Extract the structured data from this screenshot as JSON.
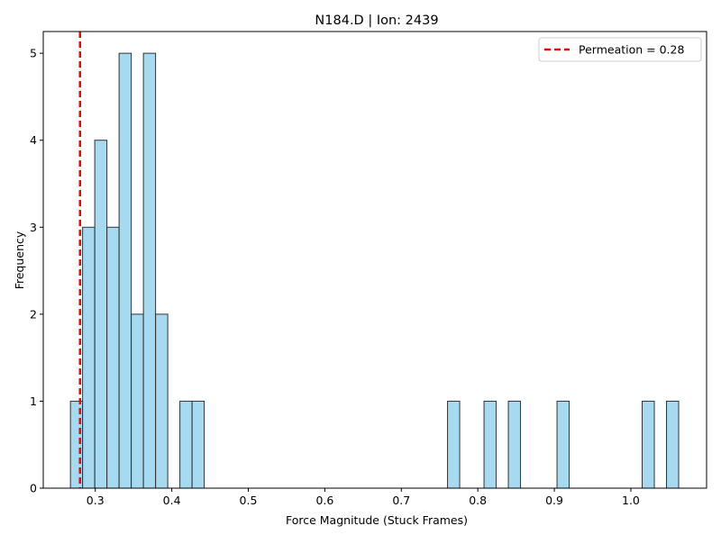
{
  "chart_data": {
    "type": "histogram",
    "title": "N184.D | Ion: 2439",
    "xlabel": "Force Magnitude (Stuck Frames)",
    "ylabel": "Frequency",
    "xlim": [
      0.232,
      1.099
    ],
    "ylim": [
      0,
      5.25
    ],
    "bin_width": 0.0159,
    "bins": [
      {
        "x0": 0.2675,
        "count": 1
      },
      {
        "x0": 0.2834,
        "count": 3
      },
      {
        "x0": 0.2993,
        "count": 4
      },
      {
        "x0": 0.3152,
        "count": 3
      },
      {
        "x0": 0.3311,
        "count": 5
      },
      {
        "x0": 0.347,
        "count": 2
      },
      {
        "x0": 0.3629,
        "count": 5
      },
      {
        "x0": 0.3788,
        "count": 2
      },
      {
        "x0": 0.4106,
        "count": 1
      },
      {
        "x0": 0.4265,
        "count": 1
      },
      {
        "x0": 0.7604,
        "count": 1
      },
      {
        "x0": 0.8081,
        "count": 1
      },
      {
        "x0": 0.8399,
        "count": 1
      },
      {
        "x0": 0.9035,
        "count": 1
      },
      {
        "x0": 1.0148,
        "count": 1
      },
      {
        "x0": 1.0466,
        "count": 1
      }
    ],
    "xticks": [
      "0.3",
      "0.4",
      "0.5",
      "0.6",
      "0.7",
      "0.8",
      "0.9",
      "1.0"
    ],
    "xtick_values": [
      0.3,
      0.4,
      0.5,
      0.6,
      0.7,
      0.8,
      0.9,
      1.0
    ],
    "yticks": [
      "0",
      "1",
      "2",
      "3",
      "4",
      "5"
    ],
    "yticks_values": [
      0,
      1,
      2,
      3,
      4,
      5
    ],
    "bar_color": "#87ceeb",
    "bar_edge_color": "#333333",
    "vline": {
      "x": 0.28,
      "label": "Permeation = 0.28",
      "color": "#ff0000",
      "style": "dashed"
    },
    "legend_position": "top-right",
    "grid": false
  }
}
